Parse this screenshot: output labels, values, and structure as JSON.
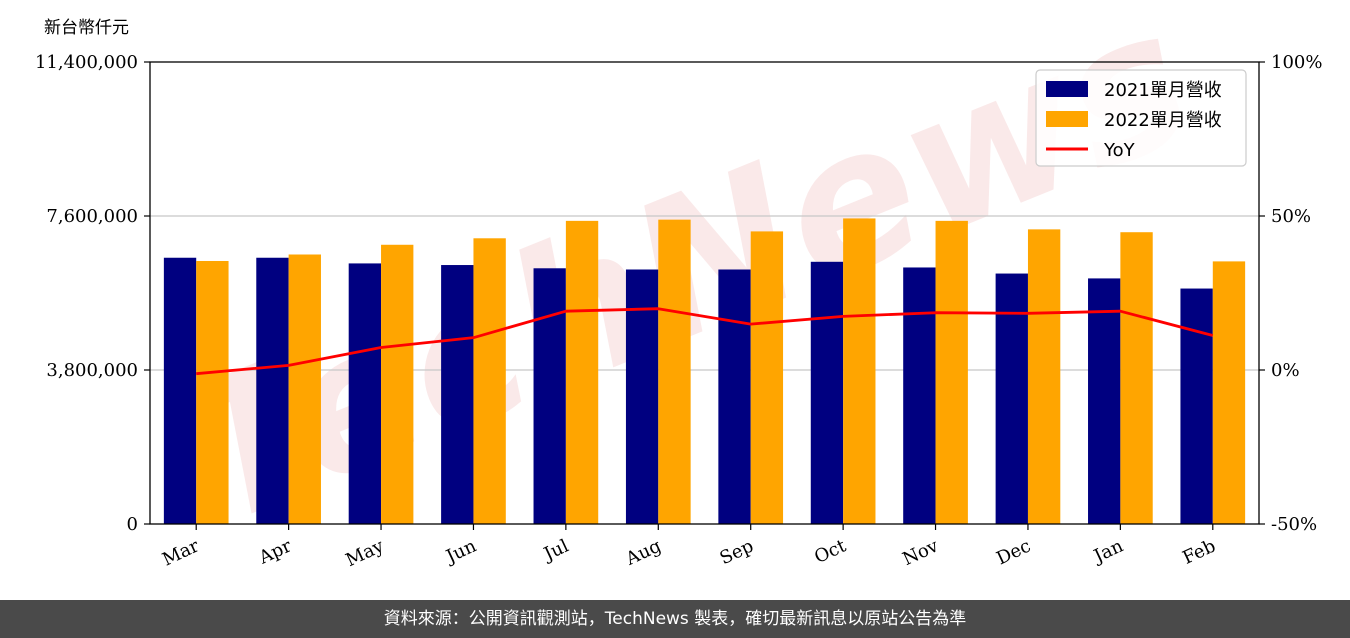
{
  "chart_data": {
    "type": "bar",
    "unit_label": "新台幣仟元",
    "categories": [
      "Mar",
      "Apr",
      "May",
      "Jun",
      "Jul",
      "Aug",
      "Sep",
      "Oct",
      "Nov",
      "Dec",
      "Jan",
      "Feb"
    ],
    "series": [
      {
        "name": "2021單月營收",
        "color": "#000080",
        "values": [
          6570000,
          6570000,
          6430000,
          6390000,
          6310000,
          6280000,
          6280000,
          6470000,
          6330000,
          6180000,
          6060000,
          5810000
        ]
      },
      {
        "name": "2022單月營收",
        "color": "#FFA500",
        "values": [
          6490000,
          6650000,
          6890000,
          7050000,
          7480000,
          7510000,
          7220000,
          7540000,
          7480000,
          7270000,
          7200000,
          6480000
        ]
      }
    ],
    "line_series": {
      "name": "YoY",
      "color": "#FF0000",
      "values": [
        -1.2,
        1.5,
        7.3,
        10.5,
        19.1,
        19.9,
        14.9,
        17.4,
        18.6,
        18.4,
        19.1,
        11.2
      ]
    },
    "y_left": {
      "min": 0,
      "max": 11400000,
      "ticks": [
        "0",
        "3,800,000",
        "7,600,000",
        "11,400,000"
      ]
    },
    "y_right": {
      "min": -50,
      "max": 100,
      "ticks": [
        "-50%",
        "0%",
        "50%",
        "100%"
      ]
    },
    "grid": true,
    "legend_position": "top-right",
    "watermark": "TechNews"
  },
  "footer": {
    "text": "資料來源：公開資訊觀測站，TechNews 製表，確切最新訊息以原站公告為準"
  }
}
